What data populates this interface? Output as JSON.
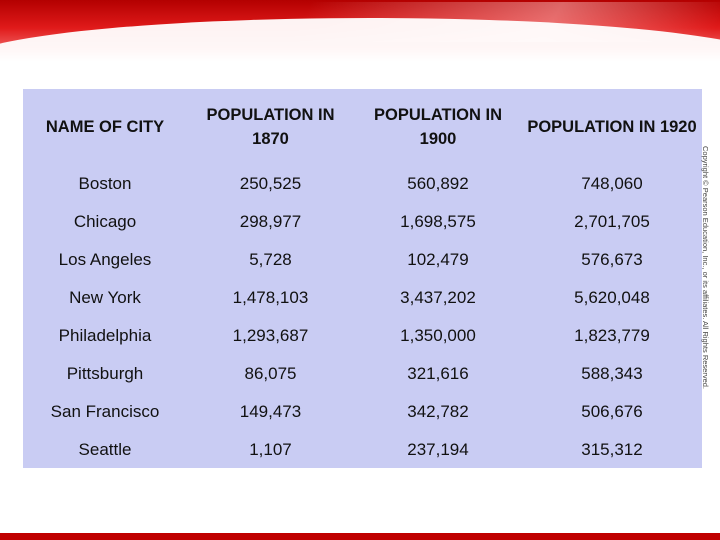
{
  "table": {
    "headers": [
      "NAME OF CITY",
      "POPULATION IN 1870",
      "POPULATION IN 1900",
      "POPULATION IN 1920"
    ],
    "rows": [
      [
        "Boston",
        "250,525",
        "560,892",
        "748,060"
      ],
      [
        "Chicago",
        "298,977",
        "1,698,575",
        "2,701,705"
      ],
      [
        "Los Angeles",
        "5,728",
        "102,479",
        "576,673"
      ],
      [
        "New York",
        "1,478,103",
        "3,437,202",
        "5,620,048"
      ],
      [
        "Philadelphia",
        "1,293,687",
        "1,350,000",
        "1,823,779"
      ],
      [
        "Pittsburgh",
        "86,075",
        "321,616",
        "588,343"
      ],
      [
        "San Francisco",
        "149,473",
        "342,782",
        "506,676"
      ],
      [
        "Seattle",
        "1,107",
        "237,194",
        "315,312"
      ]
    ]
  },
  "copyright": "Copyright © Pearson Education, Inc., or its affiliates. All Rights Reserved.",
  "colors": {
    "banner": "#d01010",
    "table_background": "#c9ccf3",
    "bottom_bar": "#c00000"
  }
}
